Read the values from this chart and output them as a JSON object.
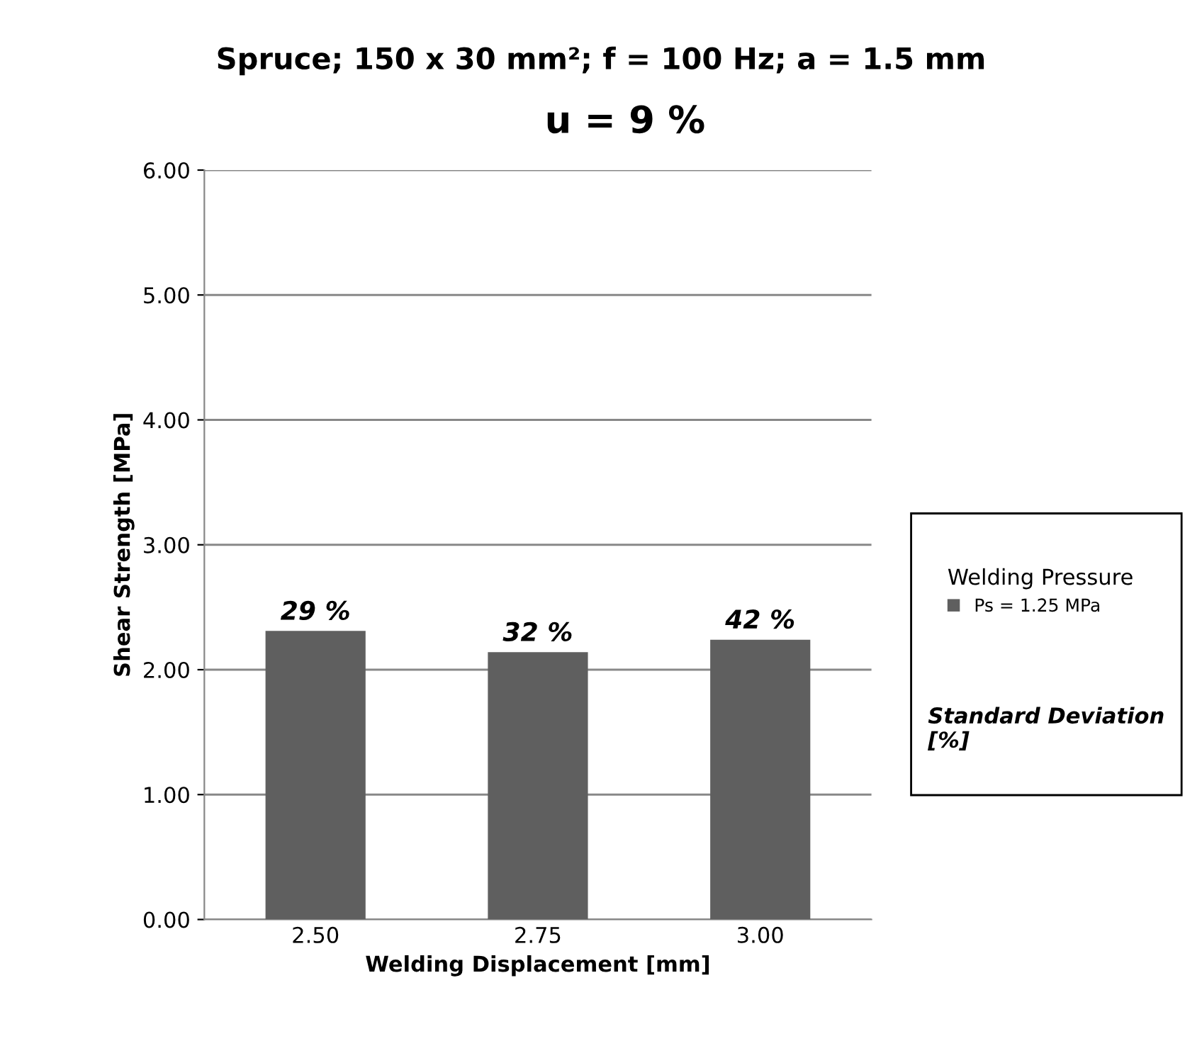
{
  "chart_data": {
    "type": "bar",
    "title": "Spruce; 150 x 30 mm²; f = 100 Hz; a = 1.5 mm",
    "subtitle": "u = 9 %",
    "xlabel": "Welding Displacement [mm]",
    "ylabel": "Shear Strength [MPa]",
    "legend_title": "Welding Pressure",
    "categories": [
      "2.50",
      "2.75",
      "3.00"
    ],
    "series": [
      {
        "name": "Ps = 1.25 MPa",
        "color": "#5f5f5f",
        "values": [
          2.31,
          2.14,
          2.24
        ]
      }
    ],
    "ylim": [
      0,
      6
    ],
    "yticks": [
      {
        "value": 0,
        "label": "0.00"
      },
      {
        "value": 1,
        "label": "1.00"
      },
      {
        "value": 2,
        "label": "2.00"
      },
      {
        "value": 3,
        "label": "3.00"
      },
      {
        "value": 4,
        "label": "4.00"
      },
      {
        "value": 5,
        "label": "5.00"
      },
      {
        "value": 6,
        "label": "6.00"
      }
    ],
    "grid": "y",
    "legend": "right",
    "annotations": [
      {
        "text": "29 %",
        "x": "2.50",
        "y": 2.31
      },
      {
        "text": "32 %",
        "x": "2.75",
        "y": 2.14
      },
      {
        "text": "42 %",
        "x": "3.00",
        "y": 2.24
      },
      "Standard Deviation [%]"
    ]
  }
}
